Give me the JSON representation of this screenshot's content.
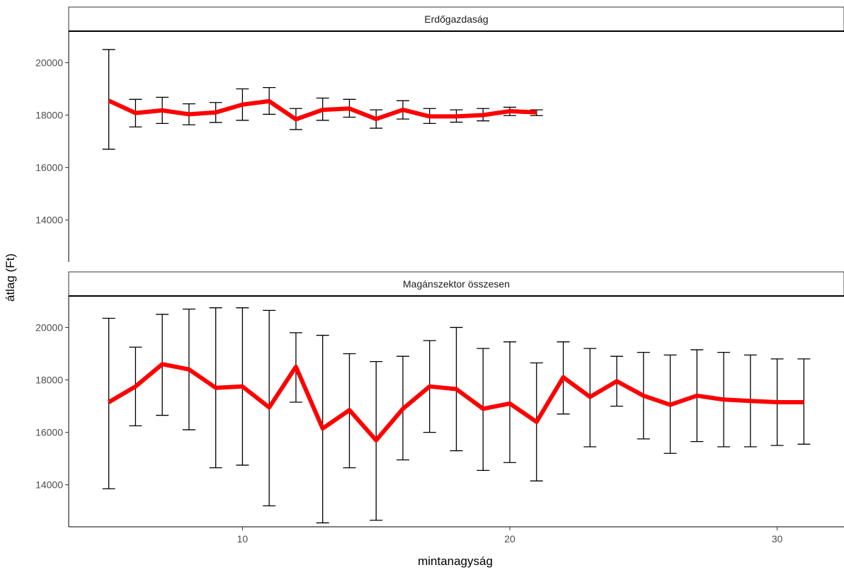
{
  "chart_data": {
    "type": "line",
    "xlabel": "mintanagyság",
    "ylabel": "átlag (Ft)",
    "xlim": [
      3.5,
      32.5
    ],
    "ylim": [
      12400,
      21200
    ],
    "x_ticks": [
      10,
      20,
      30
    ],
    "y_ticks": [
      14000,
      16000,
      18000,
      20000
    ],
    "grid": false,
    "legend": "none",
    "line_color": "#ff0000",
    "errorbar_color": "#000000",
    "panels": [
      {
        "title": "Erdőgazdaság",
        "series": [
          {
            "x": [
              5,
              6,
              7,
              8,
              9,
              10,
              11,
              12,
              13,
              14,
              15,
              16,
              17,
              18,
              19,
              20,
              21
            ],
            "mean": [
              18550,
              18080,
              18180,
              18030,
              18100,
              18400,
              18530,
              17840,
              18200,
              18250,
              17850,
              18200,
              17950,
              17950,
              18000,
              18150,
              18100
            ],
            "lower": [
              16700,
              17550,
              17680,
              17630,
              17720,
              17800,
              18030,
              17450,
              17800,
              17920,
              17500,
              17850,
              17680,
              17730,
              17780,
              17980,
              17980
            ],
            "upper": [
              20500,
              18600,
              18680,
              18430,
              18480,
              19000,
              19050,
              18250,
              18650,
              18600,
              18200,
              18550,
              18250,
              18200,
              18250,
              18300,
              18200
            ]
          }
        ]
      },
      {
        "title": "Magánszektor összesen",
        "series": [
          {
            "x": [
              5,
              6,
              7,
              8,
              9,
              10,
              11,
              12,
              13,
              14,
              15,
              16,
              17,
              18,
              19,
              20,
              21,
              22,
              23,
              24,
              25,
              26,
              27,
              28,
              29,
              30,
              31
            ],
            "mean": [
              17150,
              17750,
              18600,
              18400,
              17700,
              17750,
              16950,
              18500,
              16150,
              16850,
              15700,
              16900,
              17750,
              17650,
              16900,
              17100,
              16400,
              18100,
              17350,
              17950,
              17400,
              17050,
              17400,
              17250,
              17200,
              17150,
              17150
            ],
            "lower": [
              13850,
              16250,
              16650,
              16100,
              14650,
              14750,
              13200,
              17150,
              12550,
              14650,
              12650,
              14950,
              16000,
              15300,
              14550,
              14850,
              14150,
              16700,
              15450,
              17000,
              15750,
              15200,
              15650,
              15450,
              15450,
              15500,
              15550
            ],
            "upper": [
              20350,
              19250,
              20500,
              20700,
              20750,
              20750,
              20650,
              19800,
              19700,
              19000,
              18700,
              18900,
              19500,
              20000,
              19200,
              19450,
              18650,
              19450,
              19200,
              18900,
              19050,
              18950,
              19150,
              19050,
              18950,
              18800,
              18800
            ]
          }
        ]
      }
    ]
  }
}
